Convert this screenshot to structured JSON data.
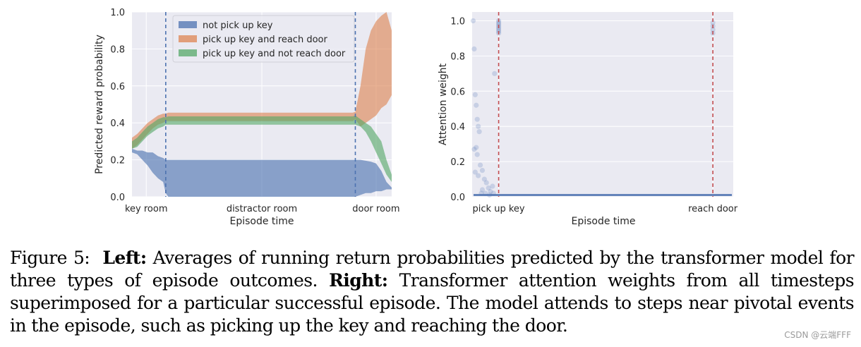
{
  "chart_data": [
    {
      "type": "area",
      "ylabel": "Predicted reward probability",
      "xlabel": "Episode time",
      "ylim": [
        0.0,
        1.0
      ],
      "yticks": [
        "0.0",
        "0.2",
        "0.4",
        "0.6",
        "0.8",
        "1.0"
      ],
      "x_tick_labels": [
        "key room",
        "distractor room",
        "door room"
      ],
      "grid": true,
      "legend_position": "top",
      "x": [
        0,
        2,
        4,
        6,
        8,
        10,
        12,
        13,
        14,
        30,
        50,
        70,
        85,
        86,
        88,
        90,
        92,
        94,
        96,
        98,
        100
      ],
      "event_lines_x": [
        13,
        86
      ],
      "series": [
        {
          "name": "not pick up key",
          "color": "#4c72b0",
          "upper": [
            0.26,
            0.25,
            0.25,
            0.24,
            0.24,
            0.22,
            0.21,
            0.2,
            0.2,
            0.2,
            0.2,
            0.2,
            0.2,
            0.2,
            0.2,
            0.195,
            0.19,
            0.18,
            0.14,
            0.08,
            0.05
          ],
          "lower": [
            0.24,
            0.23,
            0.2,
            0.17,
            0.13,
            0.1,
            0.08,
            0.02,
            0.0,
            0.0,
            0.0,
            0.0,
            0.0,
            0.0,
            0.01,
            0.02,
            0.02,
            0.03,
            0.03,
            0.04,
            0.04
          ]
        },
        {
          "name": "pick up key and reach door",
          "color": "#dd8452",
          "upper": [
            0.32,
            0.34,
            0.37,
            0.4,
            0.42,
            0.44,
            0.45,
            0.45,
            0.455,
            0.455,
            0.455,
            0.455,
            0.455,
            0.46,
            0.6,
            0.8,
            0.9,
            0.95,
            0.98,
            1.0,
            0.9
          ],
          "lower": [
            0.26,
            0.28,
            0.31,
            0.34,
            0.37,
            0.39,
            0.4,
            0.41,
            0.41,
            0.41,
            0.41,
            0.41,
            0.41,
            0.42,
            0.38,
            0.4,
            0.42,
            0.44,
            0.48,
            0.5,
            0.55
          ]
        },
        {
          "name": "pick up key and not reach door",
          "color": "#55a868",
          "upper": [
            0.3,
            0.32,
            0.35,
            0.38,
            0.4,
            0.42,
            0.43,
            0.43,
            0.435,
            0.435,
            0.435,
            0.435,
            0.435,
            0.44,
            0.42,
            0.4,
            0.38,
            0.34,
            0.3,
            0.2,
            0.12
          ],
          "lower": [
            0.26,
            0.27,
            0.3,
            0.33,
            0.35,
            0.37,
            0.38,
            0.39,
            0.39,
            0.39,
            0.39,
            0.39,
            0.39,
            0.39,
            0.38,
            0.35,
            0.3,
            0.24,
            0.18,
            0.12,
            0.08
          ]
        }
      ]
    },
    {
      "type": "scatter",
      "ylabel": "Attention weight",
      "xlabel": "Episode time",
      "ylim": [
        0.0,
        1.05
      ],
      "yticks": [
        "0.0",
        "0.2",
        "0.4",
        "0.6",
        "0.8",
        "1.0"
      ],
      "x_tick_labels": [
        "pick up key",
        "reach door"
      ],
      "grid": true,
      "event_lines_x": [
        13,
        118
      ],
      "xlim": [
        0,
        128
      ],
      "color": "#4c72b0",
      "event_line_color": "#c44e52",
      "points": [
        [
          0.5,
          1.0
        ],
        [
          1.0,
          0.84
        ],
        [
          1.5,
          0.58
        ],
        [
          2.0,
          0.52
        ],
        [
          2.5,
          0.44
        ],
        [
          3.0,
          0.4
        ],
        [
          3.5,
          0.37
        ],
        [
          2.0,
          0.28
        ],
        [
          1.0,
          0.27
        ],
        [
          2.5,
          0.24
        ],
        [
          4.0,
          0.18
        ],
        [
          5.0,
          0.15
        ],
        [
          3.0,
          0.12
        ],
        [
          1.5,
          0.14
        ],
        [
          6.0,
          0.1
        ],
        [
          7.0,
          0.08
        ],
        [
          8.0,
          0.05
        ],
        [
          5.0,
          0.04
        ],
        [
          9.0,
          0.03
        ],
        [
          10.0,
          0.06
        ],
        [
          11.0,
          0.7
        ],
        [
          4.5,
          0.02
        ],
        [
          6.5,
          0.02
        ],
        [
          8.5,
          0.01
        ],
        [
          10.5,
          0.02
        ],
        [
          13,
          1.0
        ],
        [
          13,
          0.99
        ],
        [
          13,
          0.98
        ],
        [
          13,
          0.97
        ],
        [
          13,
          0.96
        ],
        [
          13,
          0.95
        ],
        [
          13,
          0.94
        ],
        [
          13,
          0.93
        ],
        [
          118,
          0.99
        ],
        [
          118,
          0.97
        ],
        [
          118,
          0.95
        ],
        [
          118,
          0.93
        ]
      ],
      "baseline_y": 0.01
    }
  ],
  "caption": {
    "figure_label": "Figure 5:",
    "left_label": "Left:",
    "left_text": "Averages of running return probabilities predicted by the transformer model for three types of episode outcomes.",
    "right_label": "Right:",
    "right_text": "Transformer attention weights from all timesteps superimposed for a particular successful episode. The model attends to steps near pivotal events in the episode, such as picking up the key and reaching the door."
  },
  "watermark": "CSDN @云端FFF"
}
